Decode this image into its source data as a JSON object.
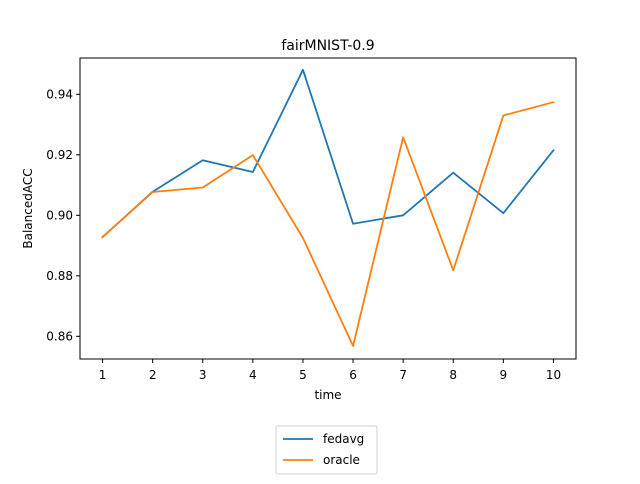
{
  "chart_data": {
    "type": "line",
    "title": "fairMNIST-0.9",
    "xlabel": "time",
    "ylabel": "BalancedACC",
    "x": [
      1,
      2,
      3,
      4,
      5,
      6,
      7,
      8,
      9,
      10
    ],
    "x_ticks": [
      "1",
      "2",
      "3",
      "4",
      "5",
      "6",
      "7",
      "8",
      "9",
      "10"
    ],
    "y_ticks": [
      "0.86",
      "0.88",
      "0.90",
      "0.92",
      "0.94"
    ],
    "xlim": [
      0.55,
      10.45
    ],
    "ylim": [
      0.8525,
      0.952
    ],
    "grid": false,
    "legend_position": "below-center",
    "series": [
      {
        "name": "fedavg",
        "color": "#1f77b4",
        "values": [
          0.8928,
          0.9078,
          0.9182,
          0.9143,
          0.9481,
          0.8972,
          0.9,
          0.9141,
          0.9007,
          0.9215
        ]
      },
      {
        "name": "oracle",
        "color": "#ff7f0e",
        "values": [
          0.8928,
          0.9077,
          0.9092,
          0.9199,
          0.8925,
          0.8568,
          0.9258,
          0.8818,
          0.933,
          0.9374
        ]
      }
    ]
  }
}
